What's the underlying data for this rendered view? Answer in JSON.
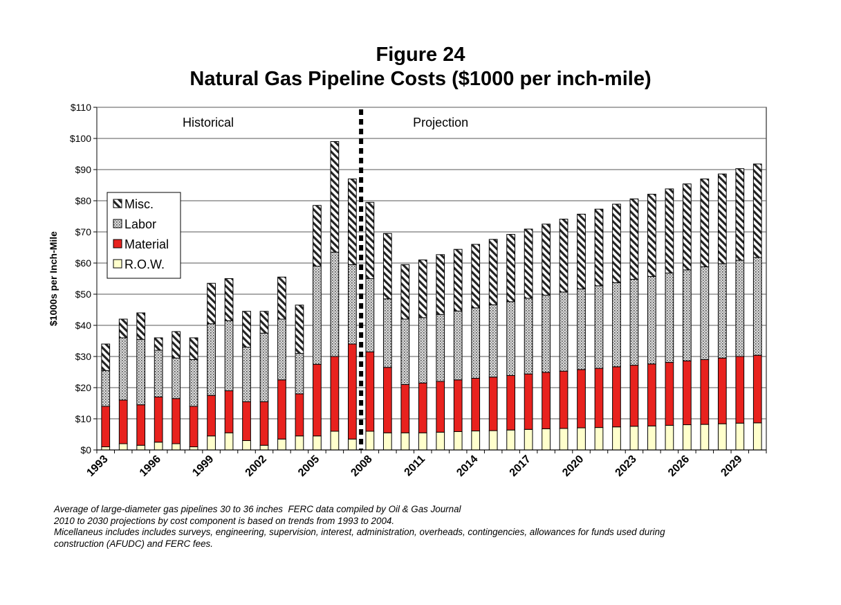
{
  "chart_data": {
    "type": "bar",
    "stacked": true,
    "title": "Figure 24",
    "subtitle": "Natural Gas Pipeline Costs ($1000 per inch-mile)",
    "ylabel": "$1000s per Inch-Mile",
    "xlabel": "",
    "ylim": [
      0,
      110
    ],
    "yticks": [
      0,
      10,
      20,
      30,
      40,
      50,
      60,
      70,
      80,
      90,
      100,
      110
    ],
    "ytick_labels": [
      "$0",
      "$10",
      "$20",
      "$30",
      "$40",
      "$50",
      "$60",
      "$70",
      "$80",
      "$90",
      "$100",
      "$110"
    ],
    "grid": true,
    "legend_position": "left",
    "x": [
      1993,
      1994,
      1995,
      1996,
      1997,
      1998,
      1999,
      2000,
      2001,
      2002,
      2003,
      2004,
      2005,
      2006,
      2007,
      2008,
      2009,
      2010,
      2011,
      2012,
      2013,
      2014,
      2015,
      2016,
      2017,
      2018,
      2019,
      2020,
      2021,
      2022,
      2023,
      2024,
      2025,
      2026,
      2027,
      2028,
      2029,
      2030
    ],
    "xtick_labels": [
      "1993",
      "1996",
      "1999",
      "2002",
      "2005",
      "2008",
      "2011",
      "2014",
      "2017",
      "2020",
      "2023",
      "2026",
      "2029"
    ],
    "series": [
      {
        "name": "R.O.W.",
        "color": "#ffffcc",
        "pattern": "solid",
        "values": [
          1,
          2,
          1.5,
          2.5,
          2,
          1,
          4.5,
          5.5,
          3,
          1.5,
          3.5,
          4.5,
          4.5,
          6,
          3.5,
          6,
          5.5,
          5.5,
          5.5,
          5.7,
          5.9,
          6.1,
          6.2,
          6.4,
          6.6,
          6.8,
          6.9,
          7.1,
          7.2,
          7.4,
          7.6,
          7.7,
          7.9,
          8.1,
          8.2,
          8.4,
          8.6,
          8.7
        ]
      },
      {
        "name": "Material",
        "color": "#e8221e",
        "pattern": "solid",
        "values": [
          13,
          14,
          13,
          14.5,
          14.5,
          13,
          13,
          13.5,
          12.5,
          14,
          19,
          13.5,
          23,
          24,
          30.5,
          25.5,
          21,
          15.5,
          16,
          16.3,
          16.6,
          16.9,
          17.2,
          17.5,
          17.8,
          18.1,
          18.4,
          18.7,
          19,
          19.3,
          19.6,
          19.9,
          20.2,
          20.5,
          20.8,
          21.1,
          21.4,
          21.7
        ]
      },
      {
        "name": "Labor",
        "color": "#d9d9d9",
        "pattern": "dots",
        "values": [
          11.5,
          20,
          21,
          15,
          13,
          15,
          23,
          22.5,
          17.5,
          22,
          19.5,
          13,
          31.5,
          33.5,
          25.5,
          23.5,
          22,
          21,
          21,
          21.5,
          22.1,
          22.6,
          23.2,
          23.7,
          24.3,
          24.8,
          25.4,
          25.9,
          26.5,
          27,
          27.6,
          28.1,
          28.7,
          29.2,
          29.8,
          30.3,
          30.9,
          31.4
        ]
      },
      {
        "name": "Misc.",
        "color": "#ffffff",
        "pattern": "hatch",
        "values": [
          8.5,
          6,
          8.5,
          4,
          8.5,
          7,
          13,
          13.5,
          11.5,
          7,
          13.5,
          15.5,
          19.5,
          35.5,
          27.5,
          24.5,
          21,
          17.5,
          18.5,
          19.2,
          19.8,
          20.4,
          21,
          21.6,
          22.2,
          22.8,
          23.4,
          24,
          24.6,
          25.2,
          25.8,
          26.4,
          27,
          27.6,
          28.2,
          28.8,
          29.4,
          30
        ]
      }
    ],
    "annotations": [
      {
        "text": "Historical",
        "region": "historical"
      },
      {
        "text": "Projection",
        "region": "projection"
      }
    ],
    "divider_after": 2007
  },
  "footnote": {
    "lines": [
      "Average of large-diameter gas pipelines 30 to 36 inches  FERC data compiled by Oil & Gas Journal",
      "2010 to 2030 projections by cost component is based on trends from 1993 to 2004.",
      "Micellaneus includes includes surveys, engineering, supervision, interest, administration, overheads, contingencies, allowances for funds used during",
      "construction (AFUDC) and FERC fees."
    ]
  }
}
